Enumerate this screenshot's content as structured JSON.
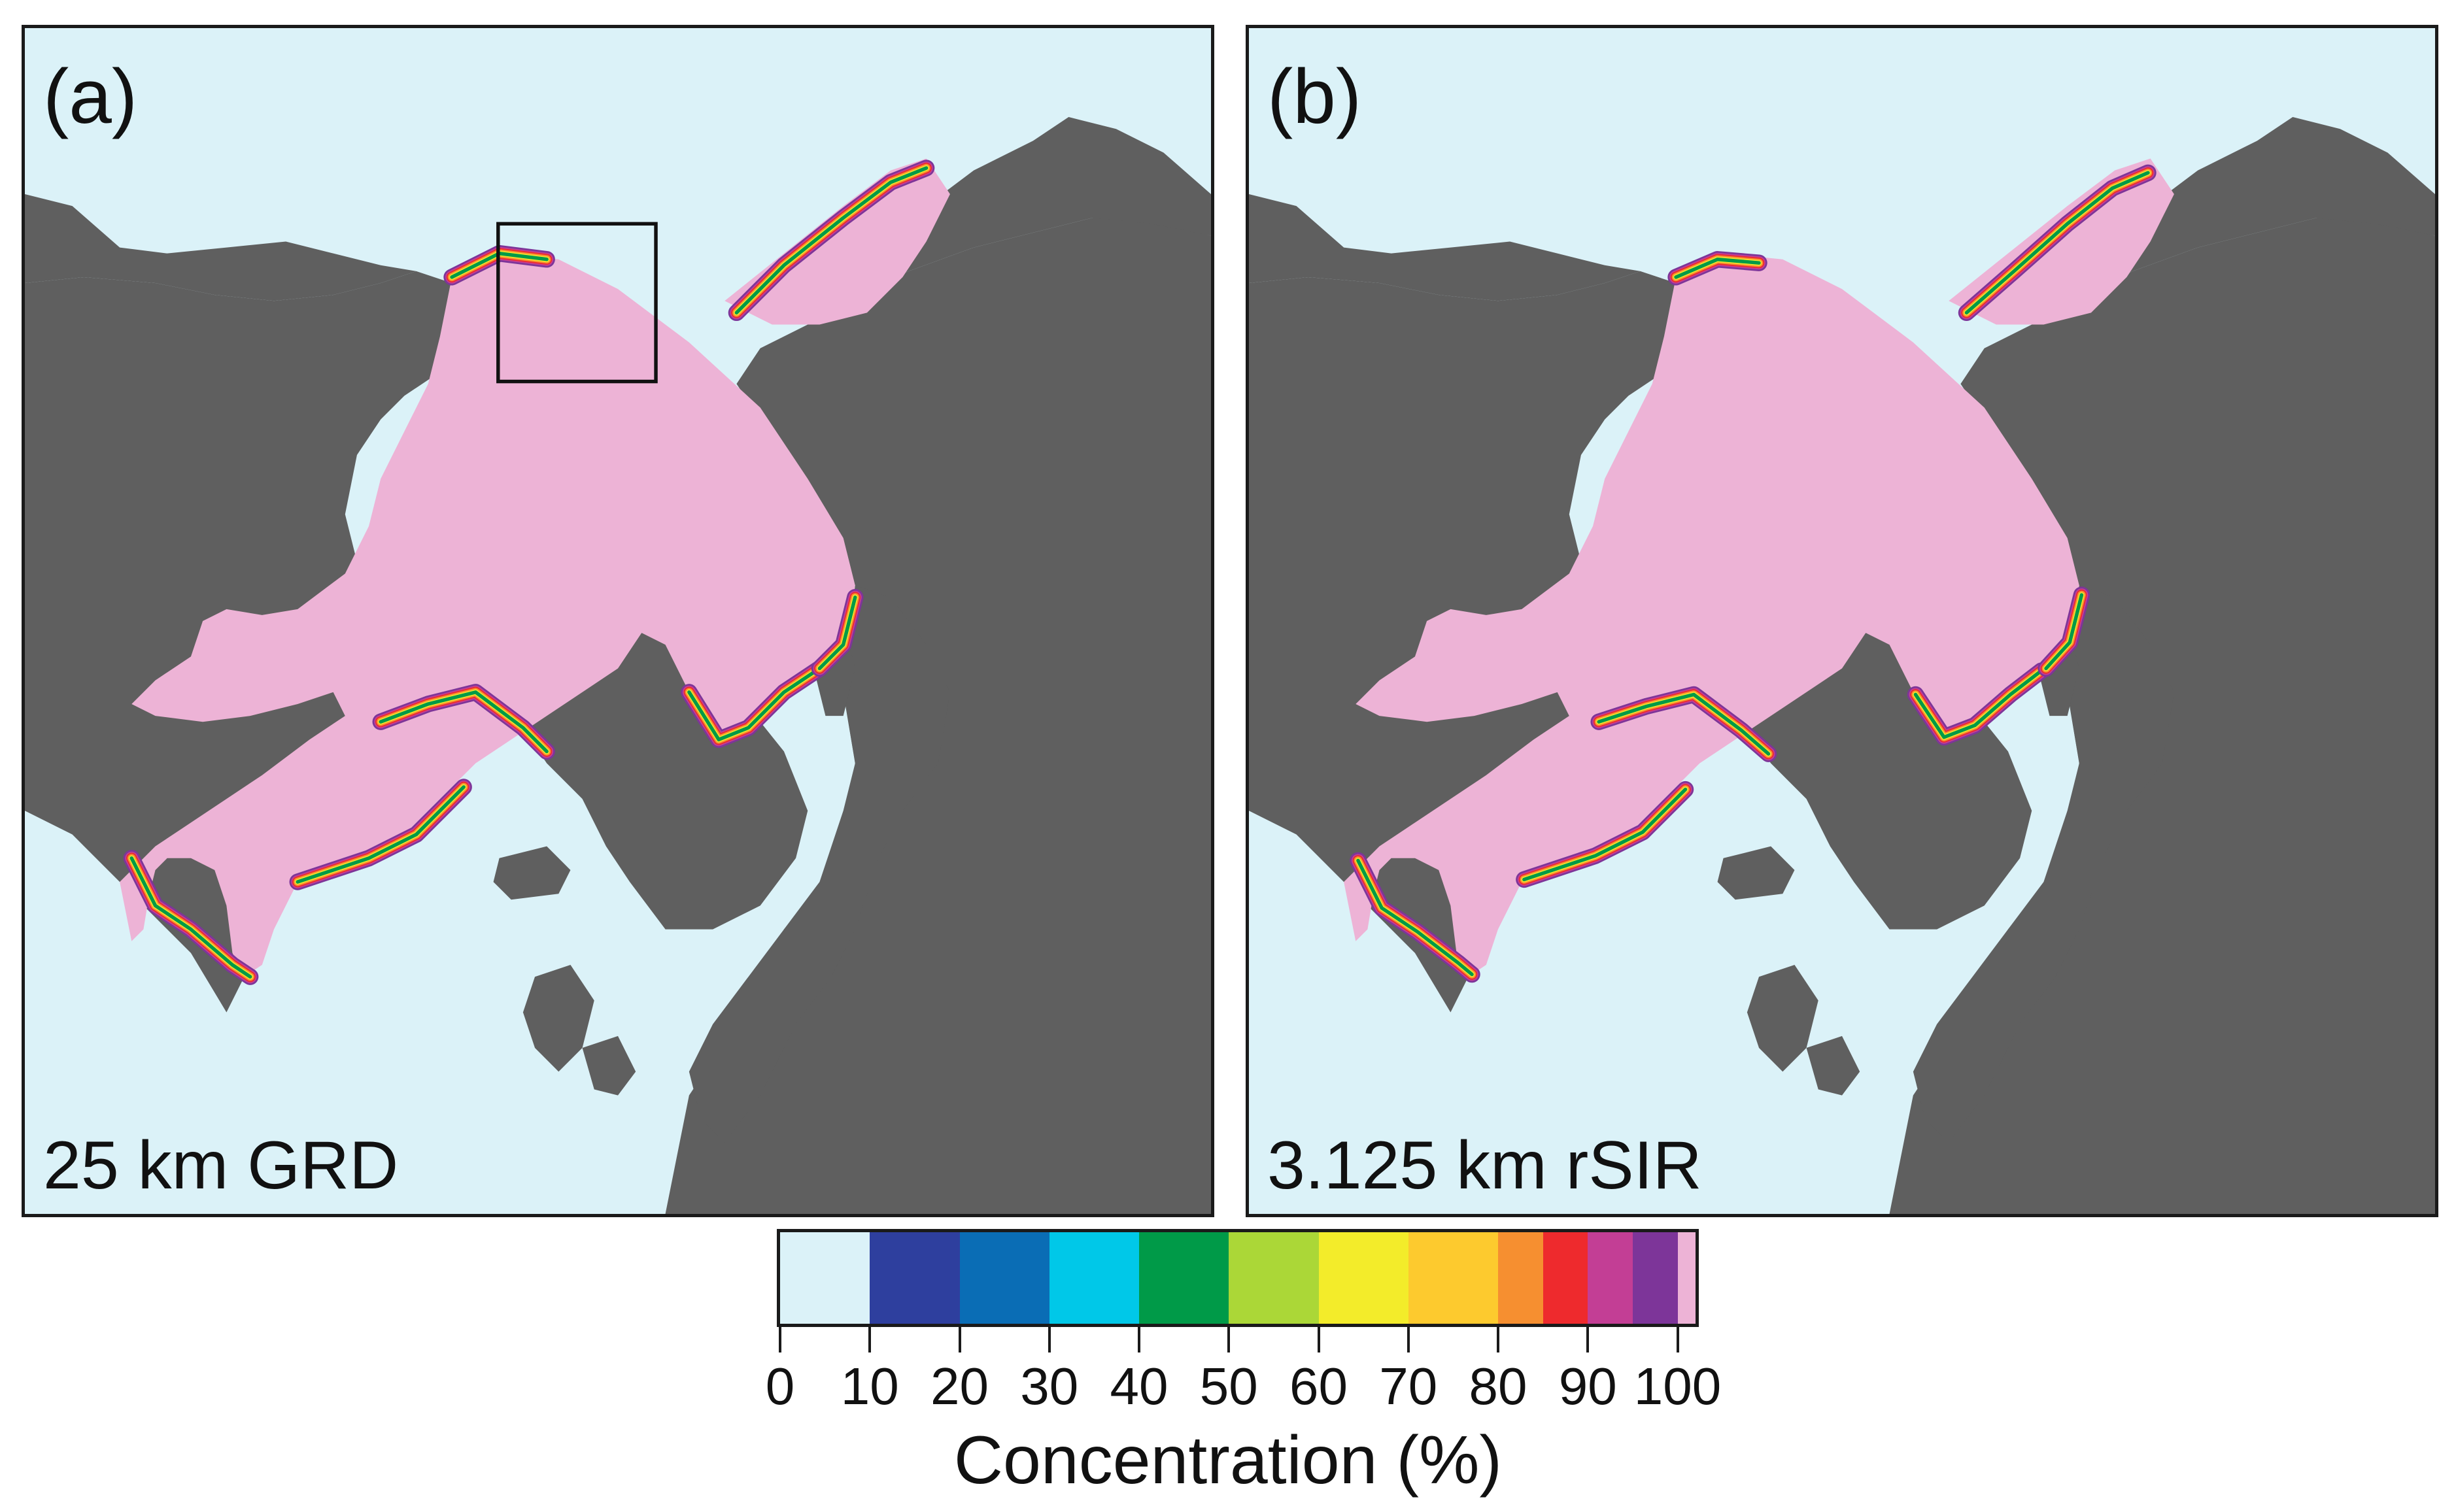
{
  "panels": [
    {
      "label": "(a)",
      "resolution": "25 km GRD"
    },
    {
      "label": "(b)",
      "resolution": "3.125 km rSIR"
    }
  ],
  "colors": {
    "ocean": "#dbf2f8",
    "land": "#5f5f5f",
    "ice_100": "#edb3d6",
    "box": "#111111"
  },
  "colorbar": {
    "title": "Concentration (%)",
    "ticks": [
      "0",
      "10",
      "20",
      "30",
      "40",
      "50",
      "60",
      "70",
      "80",
      "90",
      "100"
    ],
    "segments": [
      {
        "from": 0,
        "to": 10,
        "color": "#dbf2f8"
      },
      {
        "from": 10,
        "to": 20,
        "color": "#2e3f9e"
      },
      {
        "from": 20,
        "to": 30,
        "color": "#0a6db5"
      },
      {
        "from": 30,
        "to": 40,
        "color": "#00c8e8"
      },
      {
        "from": 40,
        "to": 50,
        "color": "#009a48"
      },
      {
        "from": 50,
        "to": 60,
        "color": "#abd737"
      },
      {
        "from": 60,
        "to": 70,
        "color": "#f3ec2a"
      },
      {
        "from": 70,
        "to": 80,
        "color": "#fdca2e"
      },
      {
        "from": 80,
        "to": 85,
        "color": "#f68f30"
      },
      {
        "from": 85,
        "to": 90,
        "color": "#ee2a2d"
      },
      {
        "from": 90,
        "to": 95,
        "color": "#c33e95"
      },
      {
        "from": 95,
        "to": 100,
        "color": "#7d3599"
      },
      {
        "from": 100,
        "to": 102,
        "color": "#edb3d6"
      }
    ]
  }
}
